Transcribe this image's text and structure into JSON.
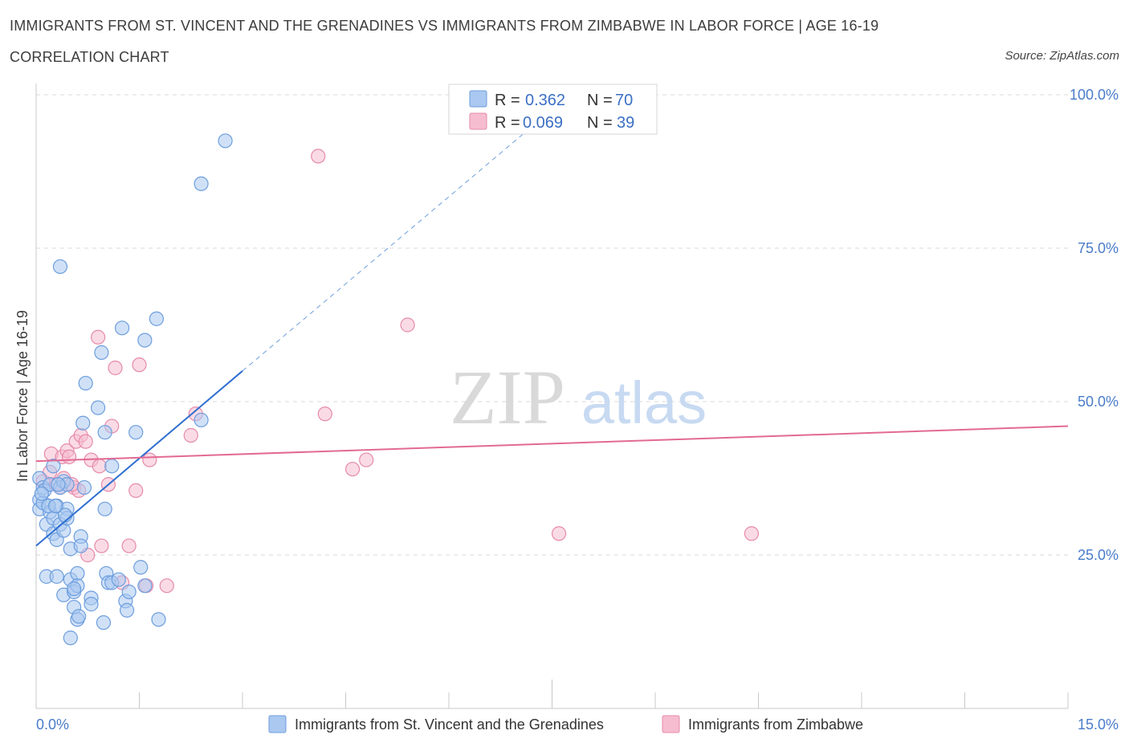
{
  "title": "IMMIGRANTS FROM ST. VINCENT AND THE GRENADINES VS IMMIGRANTS FROM ZIMBABWE IN LABOR FORCE | AGE 16-19",
  "subtitle": "CORRELATION CHART",
  "source": "Source: ZipAtlas.com",
  "watermark": {
    "zip": "ZIP",
    "atlas": "atlas"
  },
  "colors": {
    "blue_fill": "#aac8f0",
    "blue_stroke": "#6d9ede",
    "blue_line": "#2f6fd0",
    "pink_fill": "#f6bdd0",
    "pink_stroke": "#e68aab",
    "pink_line": "#e26a94",
    "grid": "#d9d9d9",
    "axis_label": "#4a7cc9"
  },
  "legend": {
    "r_label": "R =",
    "n_label": "N =",
    "rows": [
      {
        "r": "0.362",
        "n": "70"
      },
      {
        "r": "0.069",
        "n": "39"
      }
    ]
  },
  "chart_data": {
    "type": "scatter",
    "xlabel": "",
    "ylabel": "In Labor Force | Age 16-19",
    "xlim": [
      0,
      15
    ],
    "ylim": [
      0,
      100
    ],
    "y_ticks": [
      {
        "value": 25,
        "label": "25.0%"
      },
      {
        "value": 50,
        "label": "50.0%"
      },
      {
        "value": 75,
        "label": "75.0%"
      },
      {
        "value": 100,
        "label": "100.0%"
      }
    ],
    "x_tick_labels": [
      {
        "value": 0,
        "label": "0.0%"
      },
      {
        "value": 15,
        "label": "15.0%"
      }
    ],
    "x_minor_ticks": [
      0,
      1.5,
      3,
      4.5,
      6,
      7.5,
      9,
      10.5,
      12,
      13.5,
      15
    ],
    "series": [
      {
        "name": "Immigrants from St. Vincent and the Grenadines",
        "color": "blue",
        "trend": {
          "x0": 0,
          "y0": 26.5,
          "x1": 3,
          "y1": 55,
          "dash_to_x": 7.1,
          "dash_to_y": 93.8
        },
        "points": [
          [
            0.05,
            37.5
          ],
          [
            0.05,
            34
          ],
          [
            0.05,
            32.5
          ],
          [
            0.1,
            36
          ],
          [
            0.1,
            33.5
          ],
          [
            0.12,
            35.5
          ],
          [
            0.15,
            30
          ],
          [
            0.15,
            21.5
          ],
          [
            0.2,
            32
          ],
          [
            0.2,
            36.5
          ],
          [
            0.25,
            39.5
          ],
          [
            0.25,
            31
          ],
          [
            0.25,
            28.5
          ],
          [
            0.3,
            33
          ],
          [
            0.3,
            21.5
          ],
          [
            0.3,
            27.5
          ],
          [
            0.35,
            36
          ],
          [
            0.35,
            72
          ],
          [
            0.35,
            30
          ],
          [
            0.4,
            37
          ],
          [
            0.4,
            29
          ],
          [
            0.4,
            18.5
          ],
          [
            0.45,
            36.5
          ],
          [
            0.45,
            32.5
          ],
          [
            0.45,
            31
          ],
          [
            0.5,
            26
          ],
          [
            0.5,
            21
          ],
          [
            0.5,
            11.5
          ],
          [
            0.55,
            19
          ],
          [
            0.55,
            16.5
          ],
          [
            0.6,
            22
          ],
          [
            0.6,
            20
          ],
          [
            0.6,
            14.5
          ],
          [
            0.62,
            15
          ],
          [
            0.65,
            28
          ],
          [
            0.65,
            26.5
          ],
          [
            0.68,
            46.5
          ],
          [
            0.72,
            53
          ],
          [
            0.8,
            18
          ],
          [
            0.8,
            17
          ],
          [
            0.9,
            49
          ],
          [
            0.95,
            58
          ],
          [
            0.98,
            14
          ],
          [
            1.0,
            45
          ],
          [
            1.0,
            32.5
          ],
          [
            1.02,
            22
          ],
          [
            1.05,
            20.5
          ],
          [
            1.1,
            20.5
          ],
          [
            1.1,
            39.5
          ],
          [
            1.2,
            21
          ],
          [
            1.25,
            62
          ],
          [
            1.3,
            17.5
          ],
          [
            1.32,
            16
          ],
          [
            1.35,
            19
          ],
          [
            1.45,
            45
          ],
          [
            1.52,
            23
          ],
          [
            1.58,
            60
          ],
          [
            1.58,
            20
          ],
          [
            1.75,
            63.5
          ],
          [
            1.78,
            14.5
          ],
          [
            2.4,
            85.5
          ],
          [
            2.4,
            47
          ],
          [
            2.75,
            92.5
          ],
          [
            0.08,
            35
          ],
          [
            0.18,
            33
          ],
          [
            0.32,
            36.5
          ],
          [
            0.42,
            31.5
          ],
          [
            0.55,
            19.5
          ],
          [
            0.7,
            36
          ],
          [
            0.28,
            33
          ]
        ]
      },
      {
        "name": "Immigrants from Zimbabwe",
        "color": "pink",
        "trend": {
          "x0": 0,
          "y0": 40.3,
          "x1": 15,
          "y1": 46
        },
        "points": [
          [
            0.1,
            37
          ],
          [
            0.2,
            38.5
          ],
          [
            0.22,
            41.5
          ],
          [
            0.3,
            36.5
          ],
          [
            0.38,
            41
          ],
          [
            0.4,
            37.5
          ],
          [
            0.45,
            42
          ],
          [
            0.48,
            41
          ],
          [
            0.55,
            36
          ],
          [
            0.58,
            43.5
          ],
          [
            0.62,
            35.5
          ],
          [
            0.65,
            44.5
          ],
          [
            0.72,
            43.5
          ],
          [
            0.75,
            25
          ],
          [
            0.8,
            40.5
          ],
          [
            0.9,
            60.5
          ],
          [
            0.92,
            39.5
          ],
          [
            0.95,
            26.5
          ],
          [
            1.05,
            36.5
          ],
          [
            1.1,
            46
          ],
          [
            1.15,
            55.5
          ],
          [
            1.25,
            20.5
          ],
          [
            1.35,
            26.5
          ],
          [
            1.45,
            35.5
          ],
          [
            1.5,
            56
          ],
          [
            1.6,
            20
          ],
          [
            1.65,
            40.5
          ],
          [
            1.9,
            20
          ],
          [
            2.25,
            44.5
          ],
          [
            2.32,
            48
          ],
          [
            4.1,
            90
          ],
          [
            4.2,
            48
          ],
          [
            4.6,
            39
          ],
          [
            4.8,
            40.5
          ],
          [
            5.4,
            62.5
          ],
          [
            7.6,
            28.5
          ],
          [
            10.4,
            28.5
          ],
          [
            0.52,
            36.5
          ],
          [
            0.35,
            36
          ]
        ]
      }
    ]
  }
}
